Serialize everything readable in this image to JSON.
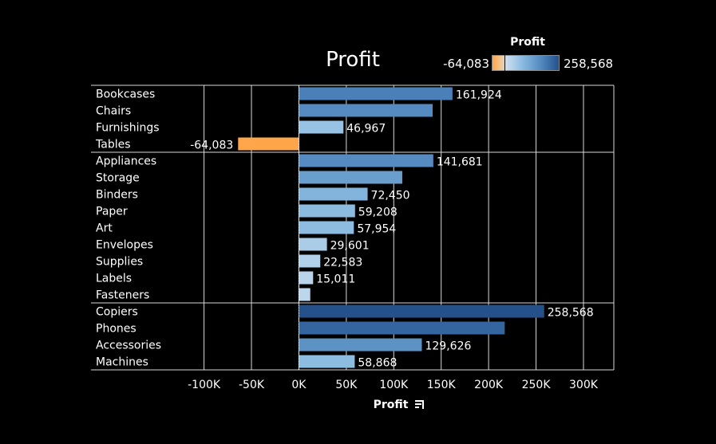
{
  "chart_data": {
    "type": "bar",
    "orientation": "horizontal",
    "title": "Profit",
    "xlabel": "Profit",
    "legend": {
      "title": "Profit",
      "min_label": "-64,083",
      "max_label": "258,568",
      "position": "top-right",
      "type": "diverging color gradient"
    },
    "xlim": [
      -135000,
      332000
    ],
    "xticks": [
      -100000,
      -50000,
      0,
      50000,
      100000,
      150000,
      200000,
      250000,
      300000
    ],
    "xtick_labels": [
      "-100K",
      "-50K",
      "0K",
      "50K",
      "100K",
      "150K",
      "200K",
      "250K",
      "300K"
    ],
    "grid": true,
    "groups": [
      {
        "rows": [
          {
            "label": "Bookcases",
            "value": 161924,
            "label_text": "161,924"
          },
          {
            "label": "Chairs",
            "value": 141000,
            "label_text": ""
          },
          {
            "label": "Furnishings",
            "value": 46967,
            "label_text": "46,967"
          },
          {
            "label": "Tables",
            "value": -64083,
            "label_text": "-64,083"
          }
        ]
      },
      {
        "rows": [
          {
            "label": "Appliances",
            "value": 141681,
            "label_text": "141,681"
          },
          {
            "label": "Storage",
            "value": 109000,
            "label_text": ""
          },
          {
            "label": "Binders",
            "value": 72450,
            "label_text": "72,450"
          },
          {
            "label": "Paper",
            "value": 59208,
            "label_text": "59,208"
          },
          {
            "label": "Art",
            "value": 57954,
            "label_text": "57,954"
          },
          {
            "label": "Envelopes",
            "value": 29601,
            "label_text": "29,601"
          },
          {
            "label": "Supplies",
            "value": 22583,
            "label_text": "22,583"
          },
          {
            "label": "Labels",
            "value": 15011,
            "label_text": "15,011"
          },
          {
            "label": "Fasteners",
            "value": 12000,
            "label_text": ""
          }
        ]
      },
      {
        "rows": [
          {
            "label": "Copiers",
            "value": 258568,
            "label_text": "258,568"
          },
          {
            "label": "Phones",
            "value": 217000,
            "label_text": ""
          },
          {
            "label": "Accessories",
            "value": 129626,
            "label_text": "129,626"
          },
          {
            "label": "Machines",
            "value": 58868,
            "label_text": "58,868"
          }
        ]
      }
    ]
  }
}
